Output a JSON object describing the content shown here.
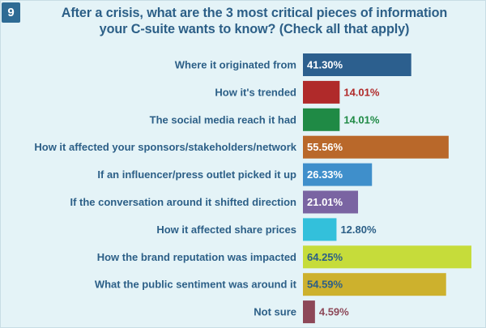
{
  "badge": "9",
  "title": {
    "line1": "After a crisis, what are the 3 most critical pieces of information",
    "line2": "your C-suite wants to know? (Check all that apply)"
  },
  "chart_data": {
    "type": "bar",
    "orientation": "horizontal",
    "title": "After a crisis, what are the 3 most critical pieces of information your C-suite wants to know? (Check all that apply)",
    "xlim": [
      0,
      65
    ],
    "grid": false,
    "categories": [
      "Where it originated from",
      "How it's trended",
      "The social media reach it had",
      "How it affected your sponsors/stakeholders/network",
      "If an influencer/press outlet picked it up",
      "If the conversation around it shifted direction",
      "How it affected share prices",
      "How the brand reputation was impacted",
      "What the public sentiment was around it",
      "Not sure"
    ],
    "values": [
      41.3,
      14.01,
      14.01,
      55.56,
      26.33,
      21.01,
      12.8,
      64.25,
      54.59,
      4.59
    ],
    "value_labels": [
      "41.30%",
      "14.01%",
      "14.01%",
      "55.56%",
      "26.33%",
      "21.01%",
      "12.80%",
      "64.25%",
      "54.59%",
      "4.59%"
    ],
    "colors": [
      "#2c5f8e",
      "#b02a2a",
      "#1f8a45",
      "#b9682a",
      "#3f8fcb",
      "#7a64a2",
      "#33c0db",
      "#c6dc3a",
      "#cdb12d",
      "#8d4858"
    ],
    "label_colors": [
      "#ffffff",
      "#b02a2a",
      "#1f8a45",
      "#ffffff",
      "#ffffff",
      "#ffffff",
      "#2c5f87",
      "#2c5f87",
      "#2c5f87",
      "#8d4858"
    ],
    "label_inside": [
      true,
      false,
      false,
      true,
      true,
      true,
      false,
      true,
      true,
      false
    ]
  }
}
